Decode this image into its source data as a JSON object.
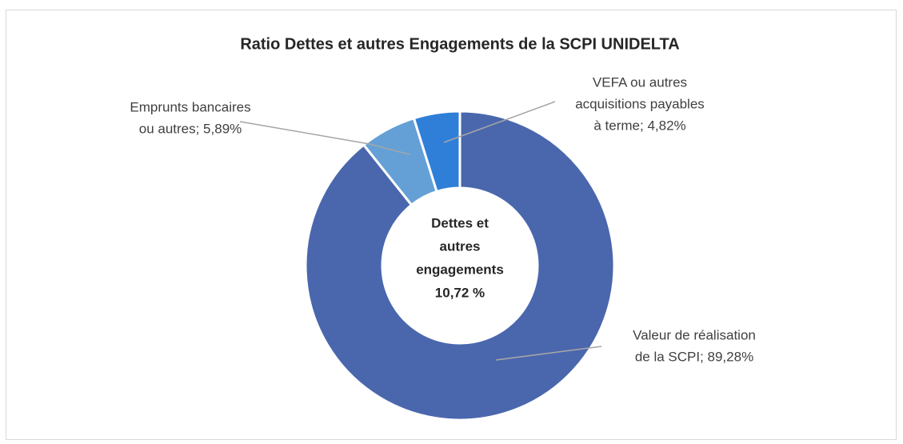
{
  "chart_data": {
    "type": "donut",
    "title": "Ratio Dettes et autres Engagements de la SCPI UNIDELTA",
    "values": [
      89.28,
      5.89,
      4.82
    ],
    "colors": [
      "#4a67ad",
      "#64a0d6",
      "#2f7fd9"
    ],
    "labels": [
      [
        "Valeur de réalisation",
        "de la SCPI; 89,28%"
      ],
      [
        "Emprunts bancaires",
        "ou autres; 5,89%"
      ],
      [
        "VEFA ou autres",
        "acquisitions payables",
        "à terme; 4,82%"
      ]
    ],
    "center_label": [
      "Dettes et",
      "autres",
      "engagements",
      "10,72 %"
    ]
  }
}
